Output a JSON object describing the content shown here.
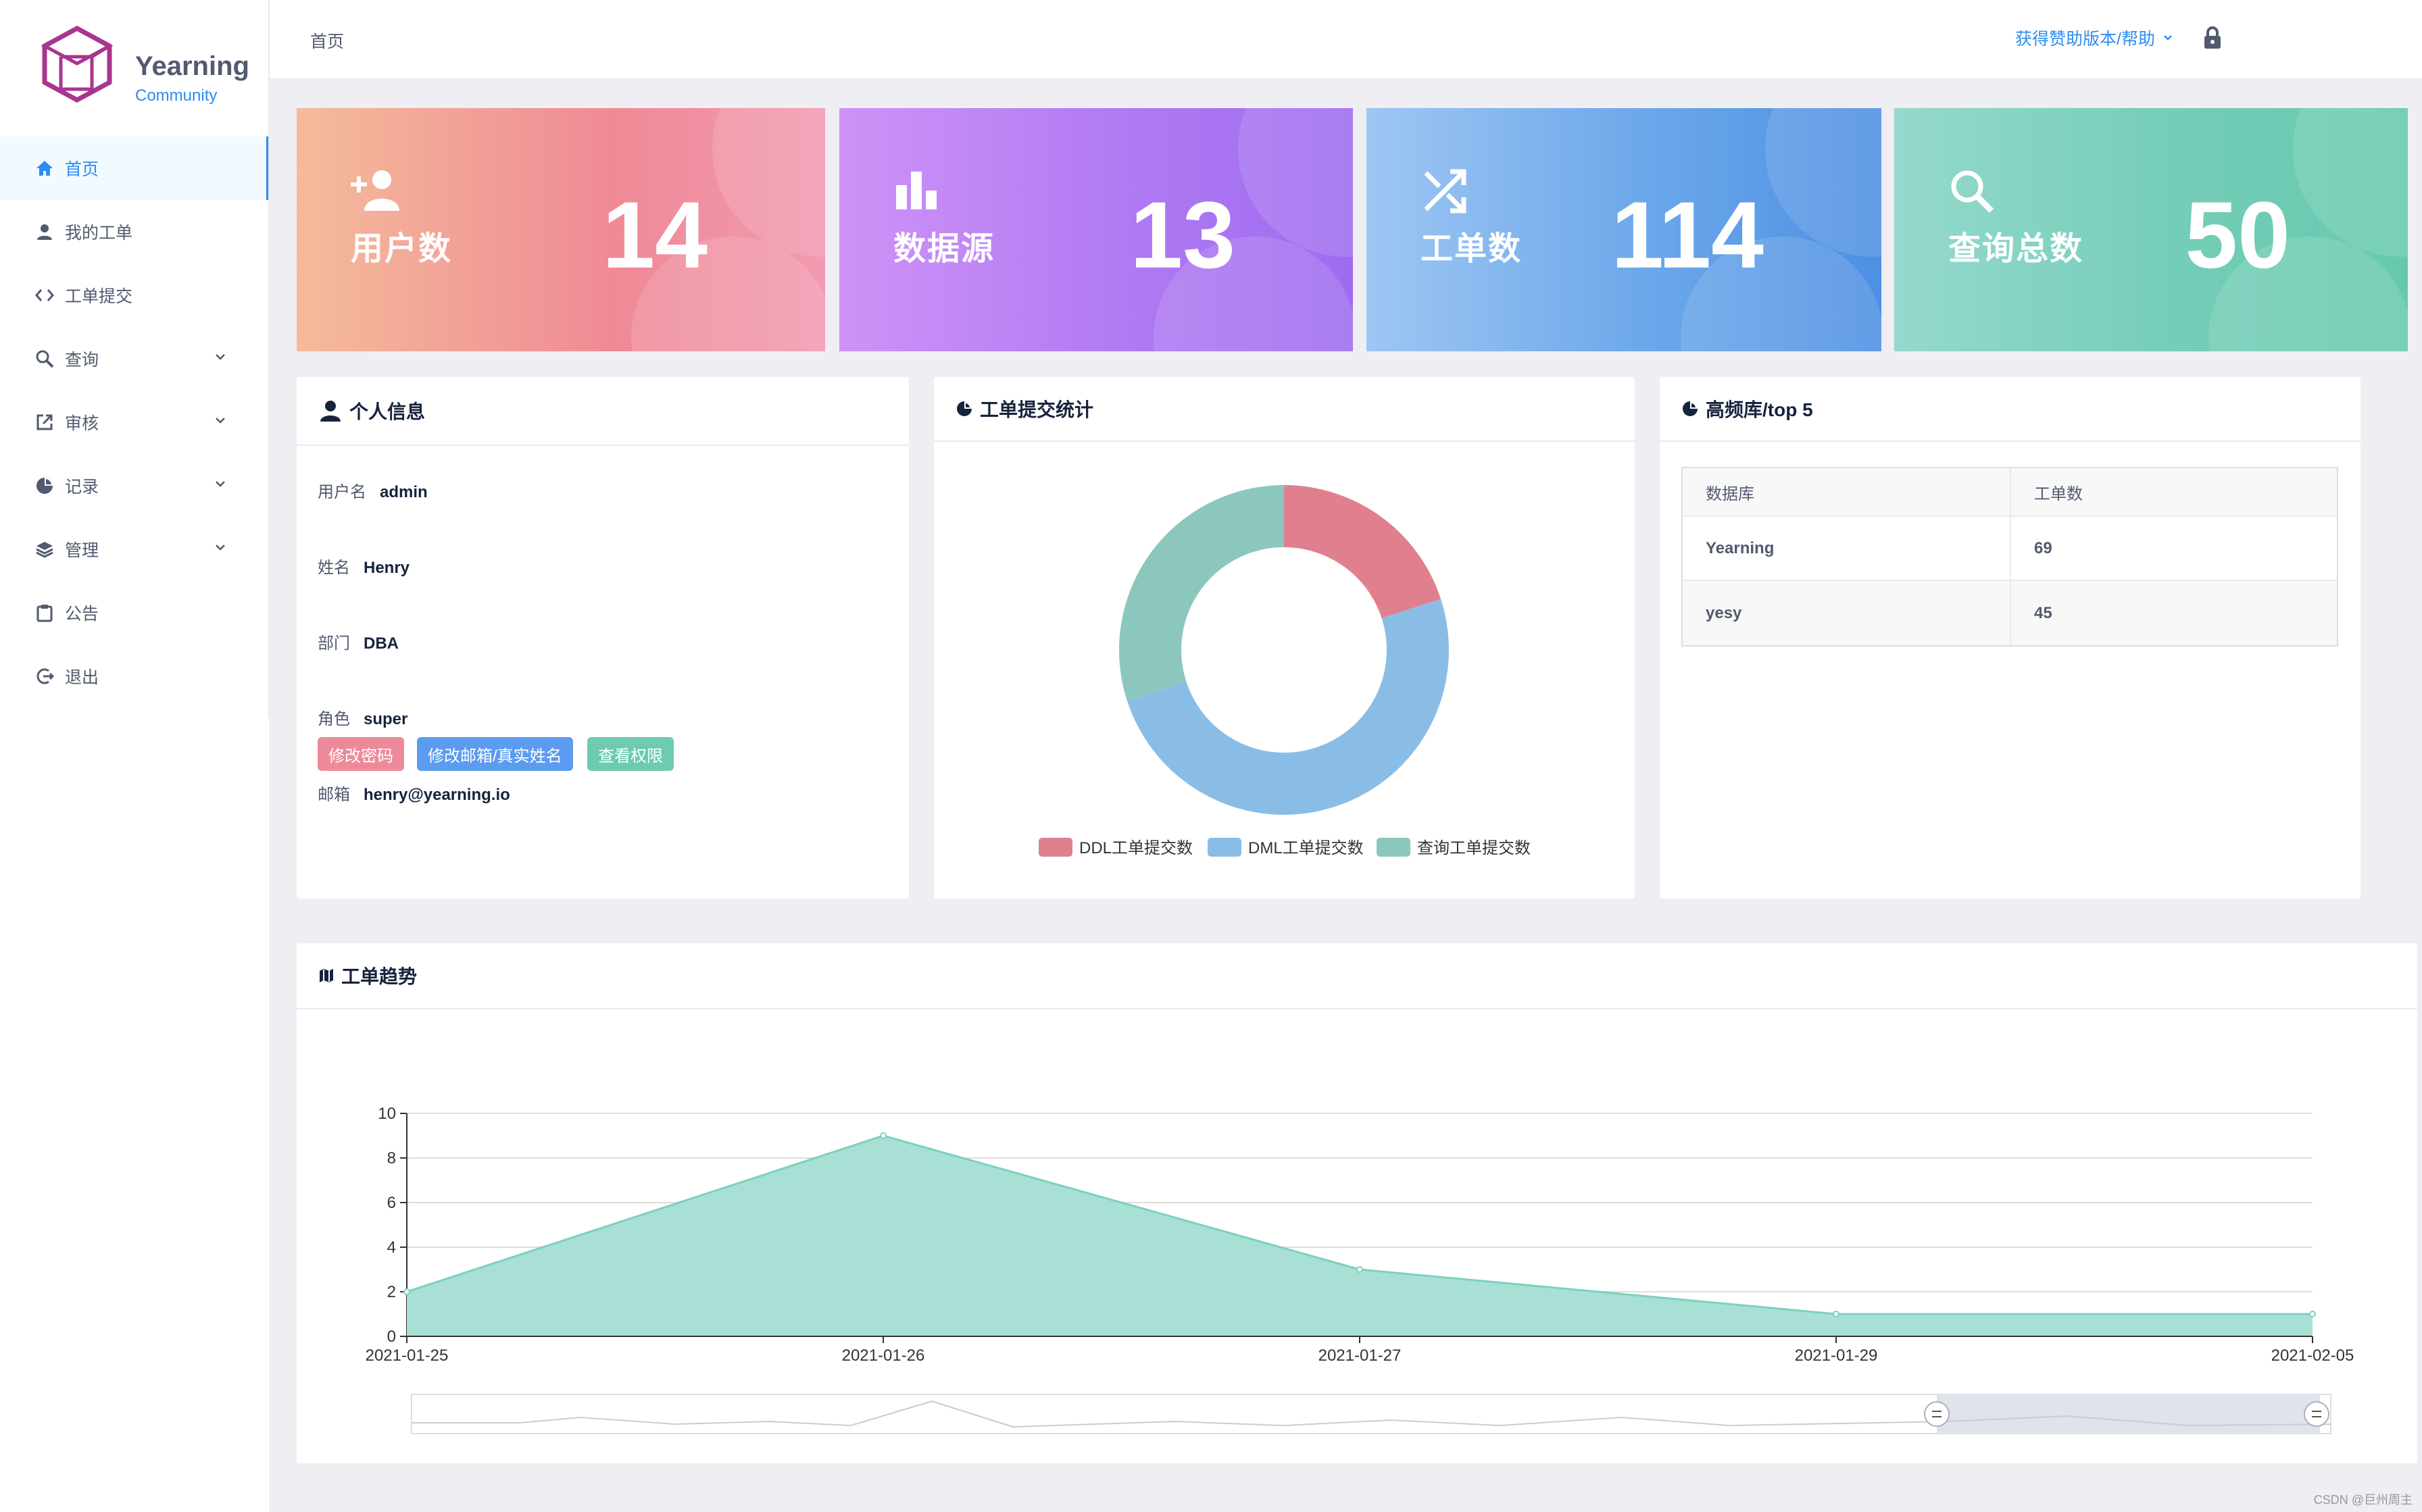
{
  "app": {
    "name": "Yearning",
    "edition": "Community"
  },
  "header": {
    "breadcrumb": "首页",
    "help_label": "获得赞助版本/帮助"
  },
  "sidebar": {
    "items": [
      {
        "label": "首页",
        "icon": "home-icon",
        "active": true
      },
      {
        "label": "我的工单",
        "icon": "person-icon"
      },
      {
        "label": "工单提交",
        "icon": "code-icon"
      },
      {
        "label": "查询",
        "icon": "search-icon",
        "expandable": true
      },
      {
        "label": "审核",
        "icon": "external-icon",
        "expandable": true
      },
      {
        "label": "记录",
        "icon": "pie-icon",
        "expandable": true
      },
      {
        "label": "管理",
        "icon": "layers-icon",
        "expandable": true
      },
      {
        "label": "公告",
        "icon": "clipboard-icon"
      },
      {
        "label": "退出",
        "icon": "logout-icon"
      }
    ]
  },
  "stats": [
    {
      "label": "用户数",
      "value": "14",
      "icon": "user-add-icon"
    },
    {
      "label": "数据源",
      "value": "13",
      "icon": "bar-chart-icon"
    },
    {
      "label": "工单数",
      "value": "114",
      "icon": "shuffle-icon"
    },
    {
      "label": "查询总数",
      "value": "50",
      "icon": "search-icon"
    }
  ],
  "profile": {
    "title": "个人信息",
    "fields": [
      {
        "key": "用户名",
        "value": "admin"
      },
      {
        "key": "姓名",
        "value": "Henry"
      },
      {
        "key": "部门",
        "value": "DBA"
      },
      {
        "key": "角色",
        "value": "super"
      },
      {
        "key": "邮箱",
        "value": "henry@yearning.io"
      }
    ],
    "buttons": [
      {
        "label": "修改密码",
        "color": "#ed8a99"
      },
      {
        "label": "修改邮箱/真实姓名",
        "color": "#5b9cf0"
      },
      {
        "label": "查看权限",
        "color": "#6ccbb2"
      }
    ]
  },
  "submit_stats": {
    "title": "工单提交统计"
  },
  "top_db": {
    "title": "高频库/top 5",
    "columns": [
      "数据库",
      "工单数"
    ],
    "rows": [
      [
        "Yearning",
        "69"
      ],
      [
        "yesy",
        "45"
      ]
    ]
  },
  "trend": {
    "title": "工单趋势"
  },
  "chart_data": [
    {
      "type": "pie",
      "title": "工单提交统计",
      "donut": true,
      "labels": [
        "DDL工单提交数",
        "DML工单提交数",
        "查询工单提交数"
      ],
      "values": [
        20,
        50,
        30
      ],
      "colors": [
        "#e0808f",
        "#8abde6",
        "#8cc7bd"
      ]
    },
    {
      "type": "area",
      "title": "工单趋势",
      "x": [
        "2021-01-25",
        "2021-01-26",
        "2021-01-27",
        "2021-01-29",
        "2021-02-05"
      ],
      "values": [
        2,
        9,
        3,
        1,
        1
      ],
      "ylim": [
        0,
        10
      ],
      "yticks": [
        0,
        2,
        4,
        6,
        8,
        10
      ],
      "grid": true,
      "colors": {
        "fill": "#a8e0d5",
        "line": "#7cd1bf"
      }
    }
  ],
  "watermark": "CSDN @巨州周主"
}
